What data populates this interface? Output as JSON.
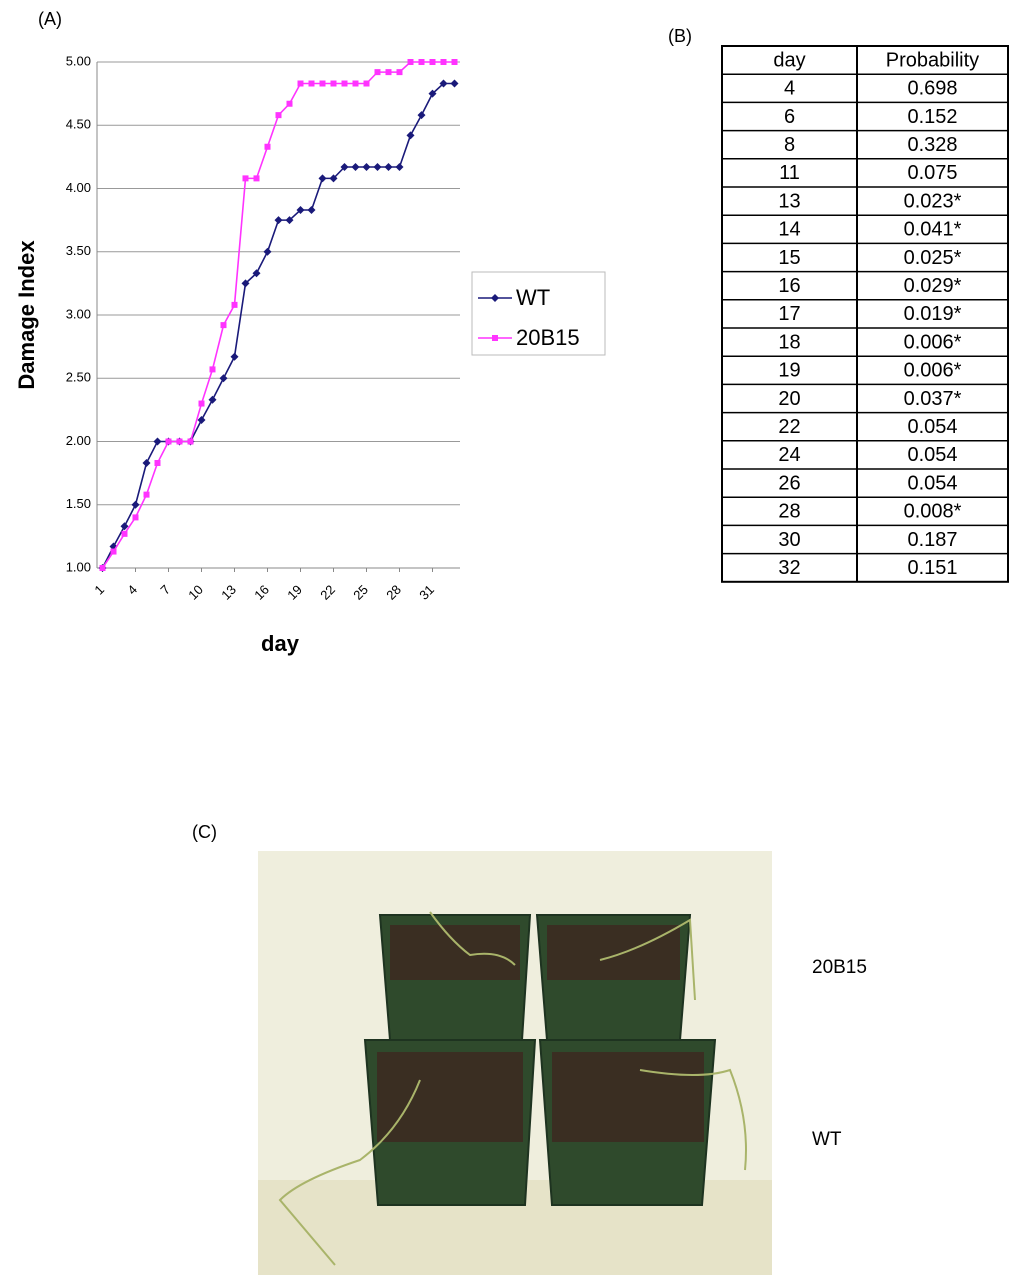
{
  "chart_data": {
    "type": "line",
    "panel_label": "(A)",
    "x_label": "day",
    "y_label": "Damage Index",
    "x": [
      1,
      2,
      3,
      4,
      5,
      6,
      7,
      8,
      9,
      10,
      11,
      12,
      13,
      14,
      15,
      16,
      17,
      18,
      19,
      20,
      21,
      22,
      23,
      24,
      25,
      26,
      27,
      28,
      29,
      30,
      31,
      32,
      33
    ],
    "xlim": [
      0.5,
      33.5
    ],
    "xticks": [
      1,
      4,
      7,
      10,
      13,
      16,
      19,
      22,
      25,
      28,
      31
    ],
    "ylim": [
      1,
      5
    ],
    "yticks": [
      {
        "value": 1,
        "label": "1.00"
      },
      {
        "value": 1.5,
        "label": "1.50"
      },
      {
        "value": 2,
        "label": "2.00"
      },
      {
        "value": 2.5,
        "label": "2.50"
      },
      {
        "value": 3,
        "label": "3.00"
      },
      {
        "value": 3.5,
        "label": "3.50"
      },
      {
        "value": 4,
        "label": "4.00"
      },
      {
        "value": 4.5,
        "label": "4.50"
      },
      {
        "value": 5,
        "label": "5.00"
      }
    ],
    "grid": true,
    "legend": "right",
    "series": [
      {
        "name": "WT",
        "color": "#1a1a7a",
        "marker": "diamond",
        "values": [
          1,
          1.17,
          1.33,
          1.5,
          1.83,
          2,
          2,
          2,
          2,
          2.17,
          2.33,
          2.5,
          2.67,
          3.25,
          3.33,
          3.5,
          3.75,
          3.75,
          3.83,
          3.83,
          4.08,
          4.08,
          4.17,
          4.17,
          4.17,
          4.17,
          4.17,
          4.17,
          4.42,
          4.58,
          4.75,
          4.83,
          4.83
        ]
      },
      {
        "name": "20B15",
        "color": "#ff33ff",
        "marker": "square",
        "values": [
          1,
          1.13,
          1.27,
          1.4,
          1.58,
          1.83,
          2,
          2,
          2,
          2.3,
          2.57,
          2.92,
          3.08,
          4.08,
          4.08,
          4.33,
          4.58,
          4.67,
          4.83,
          4.83,
          4.83,
          4.83,
          4.83,
          4.83,
          4.83,
          4.92,
          4.92,
          4.92,
          5,
          5,
          5,
          5,
          5
        ]
      }
    ]
  },
  "table": {
    "panel_label": "(B)",
    "header": [
      "day",
      "Probability"
    ],
    "rows": [
      [
        "4",
        "0.698"
      ],
      [
        "6",
        "0.152"
      ],
      [
        "8",
        "0.328"
      ],
      [
        "11",
        "0.075"
      ],
      [
        "13",
        "0.023*"
      ],
      [
        "14",
        "0.041*"
      ],
      [
        "15",
        "0.025*"
      ],
      [
        "16",
        "0.029*"
      ],
      [
        "17",
        "0.019*"
      ],
      [
        "18",
        "0.006*"
      ],
      [
        "19",
        "0.006*"
      ],
      [
        "20",
        "0.037*"
      ],
      [
        "22",
        "0.054"
      ],
      [
        "24",
        "0.054"
      ],
      [
        "26",
        "0.054"
      ],
      [
        "28",
        "0.008*"
      ],
      [
        "30",
        "0.187"
      ],
      [
        "32",
        "0.151"
      ]
    ]
  },
  "photo": {
    "panel_label": "(C)",
    "labels": [
      "20B15",
      "WT"
    ]
  }
}
